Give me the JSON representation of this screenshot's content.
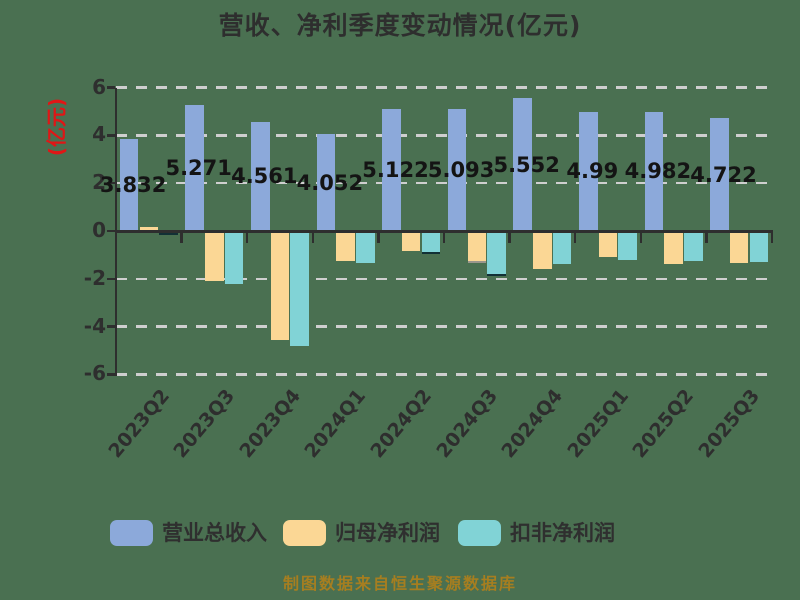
{
  "title": "营收、净利季度变动情况(亿元)",
  "y_axis": {
    "label": "(亿元)",
    "label_color": "#E01616",
    "ticks": [
      6,
      4,
      2,
      0,
      -2,
      -4,
      -6
    ],
    "min": -6,
    "max": 6
  },
  "legend": [
    {
      "name": "营业总收入",
      "color": "#8CA9DA"
    },
    {
      "name": "归母净利润",
      "color": "#FBD795"
    },
    {
      "name": "扣非净利润",
      "color": "#81D3D6"
    }
  ],
  "footer": "制图数据来自恒生聚源数据库",
  "colors": {
    "background": "#4A7051",
    "axis": "#2E2E2E",
    "grid": "#CFCFCF",
    "value_label": "#141414",
    "footer_text": "#A67E20"
  },
  "chart_data": {
    "type": "bar",
    "categories": [
      "2023Q2",
      "2023Q3",
      "2023Q4",
      "2024Q1",
      "2024Q2",
      "2024Q3",
      "2024Q4",
      "2025Q1",
      "2025Q2",
      "2025Q3"
    ],
    "series": [
      {
        "name": "营业总收入",
        "color": "#8CA9DA",
        "values": [
          3.832,
          5.271,
          4.561,
          4.052,
          5.122,
          5.093,
          5.552,
          4.99,
          4.982,
          4.722
        ],
        "value_labels": [
          "3.832",
          "5.271",
          "4.561",
          "4.052",
          "5.122",
          "5.093",
          "5.552",
          "4.99",
          "4.982",
          "4.722"
        ]
      },
      {
        "name": "归母净利润",
        "color": "#FBD795",
        "values": [
          0.15,
          -2.08,
          -4.58,
          -1.25,
          -0.82,
          -1.24,
          -1.58,
          -1.1,
          -1.4,
          -1.33
        ],
        "edge_indices": [
          5
        ],
        "edge_color": "#9A968C"
      },
      {
        "name": "扣非净利润",
        "color": "#81D3D6",
        "values": [
          -0.1,
          -2.21,
          -4.83,
          -1.34,
          -0.87,
          -1.79,
          -1.4,
          -1.23,
          -1.26,
          -1.29
        ],
        "edge_indices": [
          0,
          4,
          5
        ],
        "edge_color": "#123035"
      }
    ],
    "ylim": [
      -6,
      6
    ],
    "grid": "dashed-horizontal",
    "legend_position": "bottom",
    "value_labels_shown_for": "营业总收入"
  }
}
